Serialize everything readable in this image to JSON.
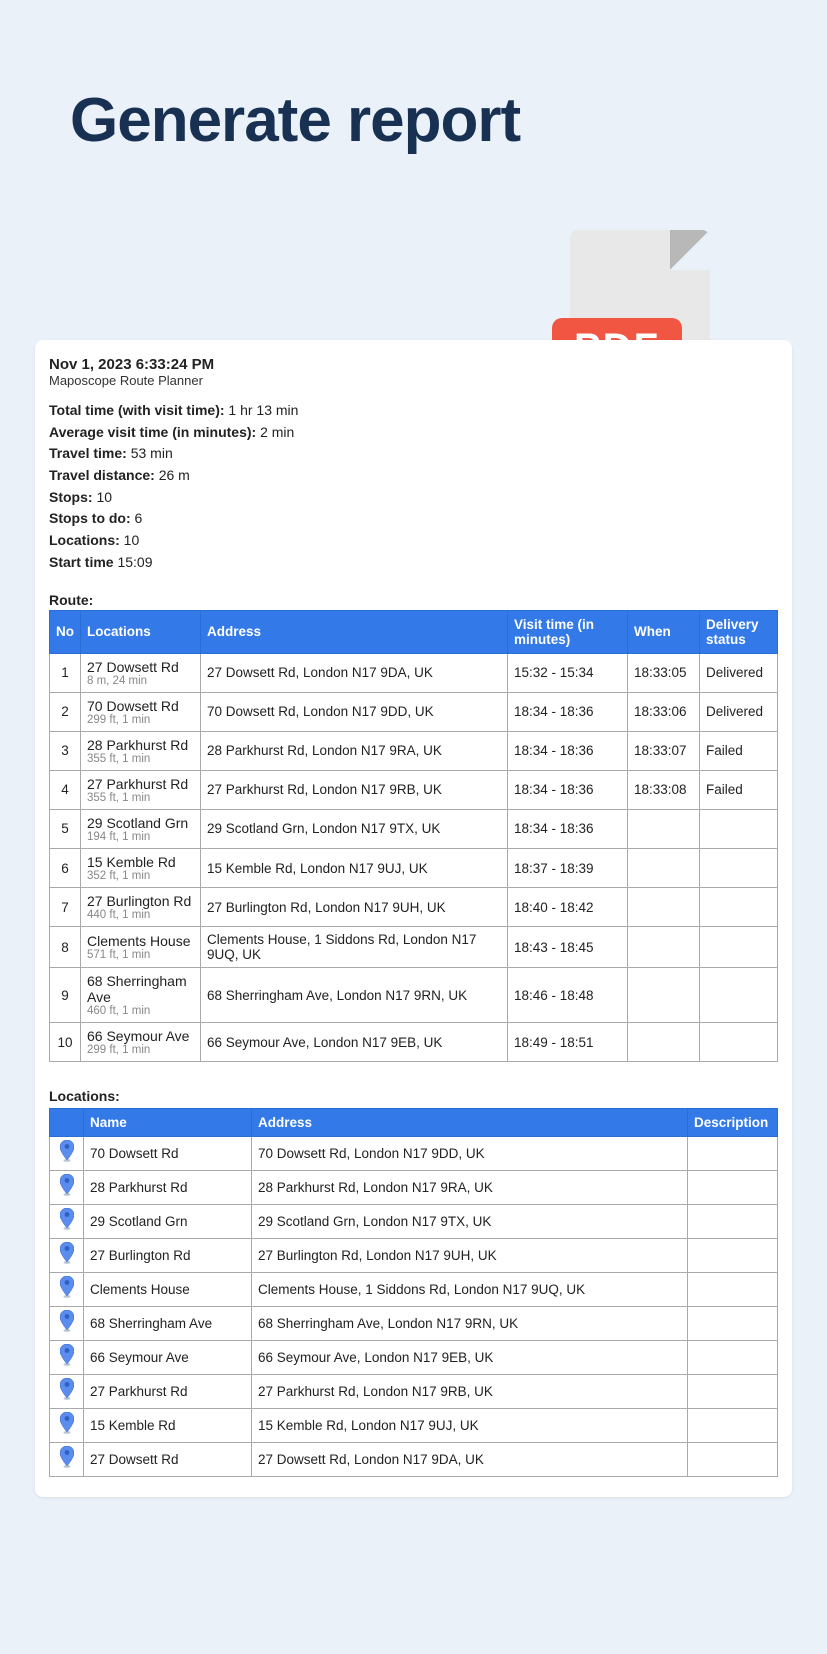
{
  "title": "Generate report",
  "pdf_label": "PDF",
  "report": {
    "timestamp": "Nov 1, 2023 6:33:24 PM",
    "subtitle": "Maposcope Route Planner",
    "stats": [
      {
        "label": "Total time (with visit time):",
        "value": " 1 hr 13 min"
      },
      {
        "label": "Average visit time (in minutes):",
        "value": " 2 min"
      },
      {
        "label": "Travel time:",
        "value": " 53 min"
      },
      {
        "label": "Travel distance:",
        "value": " 26 m"
      },
      {
        "label": "Stops:",
        "value": " 10"
      },
      {
        "label": "Stops to do:",
        "value": " 6"
      },
      {
        "label": "Locations:",
        "value": " 10"
      },
      {
        "label": "Start time",
        "value": " 15:09"
      }
    ],
    "route_label": "Route:",
    "route_headers": [
      "No",
      "Locations",
      "Address",
      "Visit time (in minutes)",
      "When",
      "Delivery status"
    ],
    "route_rows": [
      {
        "no": "1",
        "name": "27 Dowsett Rd",
        "sub": "8 m, 24 min",
        "address": "27 Dowsett Rd, London N17 9DA, UK",
        "visit": "15:32 - 15:34",
        "when": "18:33:05",
        "status": "Delivered"
      },
      {
        "no": "2",
        "name": "70 Dowsett Rd",
        "sub": "299 ft, 1 min",
        "address": "70 Dowsett Rd, London N17 9DD, UK",
        "visit": "18:34 - 18:36",
        "when": "18:33:06",
        "status": "Delivered"
      },
      {
        "no": "3",
        "name": "28 Parkhurst Rd",
        "sub": "355 ft, 1 min",
        "address": "28 Parkhurst Rd, London N17 9RA, UK",
        "visit": "18:34 - 18:36",
        "when": "18:33:07",
        "status": "Failed"
      },
      {
        "no": "4",
        "name": "27 Parkhurst Rd",
        "sub": "355 ft, 1 min",
        "address": "27 Parkhurst Rd, London N17 9RB, UK",
        "visit": "18:34 - 18:36",
        "when": "18:33:08",
        "status": "Failed"
      },
      {
        "no": "5",
        "name": "29 Scotland Grn",
        "sub": "194 ft, 1 min",
        "address": "29 Scotland Grn, London N17 9TX, UK",
        "visit": "18:34 - 18:36",
        "when": "",
        "status": ""
      },
      {
        "no": "6",
        "name": "15 Kemble Rd",
        "sub": "352 ft, 1 min",
        "address": "15 Kemble Rd, London N17 9UJ, UK",
        "visit": "18:37 - 18:39",
        "when": "",
        "status": ""
      },
      {
        "no": "7",
        "name": "27 Burlington Rd",
        "sub": "440 ft, 1 min",
        "address": "27 Burlington Rd, London N17 9UH, UK",
        "visit": "18:40 - 18:42",
        "when": "",
        "status": ""
      },
      {
        "no": "8",
        "name": "Clements House",
        "sub": "571 ft, 1 min",
        "address": "Clements House, 1 Siddons Rd, London N17 9UQ, UK",
        "visit": "18:43 - 18:45",
        "when": "",
        "status": ""
      },
      {
        "no": "9",
        "name": "68 Sherringham Ave",
        "sub": "460 ft, 1 min",
        "address": "68 Sherringham Ave, London N17 9RN, UK",
        "visit": "18:46 - 18:48",
        "when": "",
        "status": ""
      },
      {
        "no": "10",
        "name": "66 Seymour Ave",
        "sub": "299 ft, 1 min",
        "address": "66 Seymour Ave, London N17 9EB, UK",
        "visit": "18:49 - 18:51",
        "when": "",
        "status": ""
      }
    ],
    "locations_label": "Locations:",
    "locations_headers": [
      "",
      "Name",
      "Address",
      "Description"
    ],
    "location_rows": [
      {
        "name": "70 Dowsett Rd",
        "address": "70 Dowsett Rd, London N17 9DD, UK",
        "desc": ""
      },
      {
        "name": "28 Parkhurst Rd",
        "address": "28 Parkhurst Rd, London N17 9RA, UK",
        "desc": ""
      },
      {
        "name": "29 Scotland Grn",
        "address": "29 Scotland Grn, London N17 9TX, UK",
        "desc": ""
      },
      {
        "name": "27 Burlington Rd",
        "address": "27 Burlington Rd, London N17 9UH, UK",
        "desc": ""
      },
      {
        "name": "Clements House",
        "address": "Clements House, 1 Siddons Rd, London N17 9UQ, UK",
        "desc": ""
      },
      {
        "name": "68 Sherringham Ave",
        "address": "68 Sherringham Ave, London N17 9RN, UK",
        "desc": ""
      },
      {
        "name": "66 Seymour Ave",
        "address": "66 Seymour Ave, London N17 9EB, UK",
        "desc": ""
      },
      {
        "name": "27 Parkhurst Rd",
        "address": "27 Parkhurst Rd, London N17 9RB, UK",
        "desc": ""
      },
      {
        "name": "15 Kemble Rd",
        "address": "15 Kemble Rd, London N17 9UJ, UK",
        "desc": ""
      },
      {
        "name": "27 Dowsett Rd",
        "address": "27 Dowsett Rd, London N17 9DA, UK",
        "desc": ""
      }
    ]
  },
  "colors": {
    "page_bg": "#ebf1f9",
    "title_color": "#183153",
    "header_bg": "#337ae8",
    "pdf_red": "#f15642"
  }
}
